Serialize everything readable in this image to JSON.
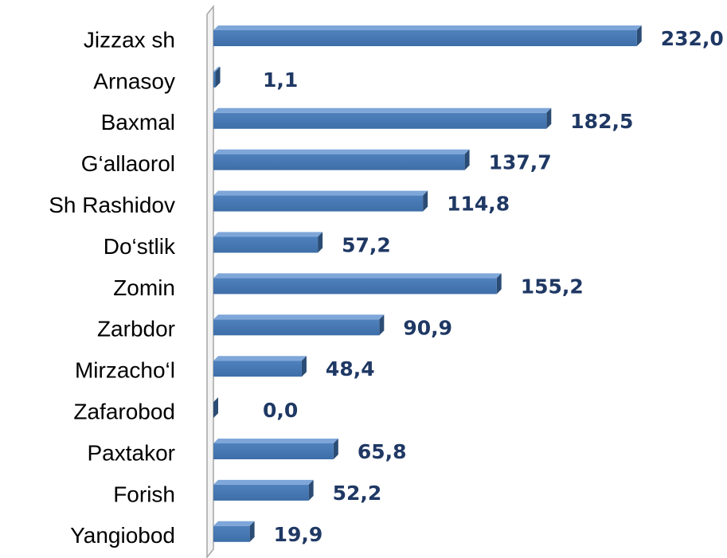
{
  "chart_data": {
    "type": "bar",
    "orientation": "horizontal",
    "categories": [
      "Jizzax sh",
      "Arnasoy",
      "Baxmal",
      "G‘allaorol",
      "Sh Rashidov",
      "Do‘stlik",
      "Zomin",
      "Zarbdor",
      "Mirzacho‘l",
      "Zafarobod",
      "Paxtakor",
      "Forish",
      "Yangiobod"
    ],
    "values": [
      232.0,
      1.1,
      182.5,
      137.7,
      114.8,
      57.2,
      155.2,
      90.9,
      48.4,
      0.0,
      65.8,
      52.2,
      19.9
    ],
    "value_labels": [
      "232,0",
      "1,1",
      "182,5",
      "137,7",
      "114,8",
      "57,2",
      "155,2",
      "90,9",
      "48,4",
      "0,0",
      "65,8",
      "52,2",
      "19,9"
    ],
    "color": "#4f81bd",
    "xlim": [
      0,
      250
    ]
  }
}
